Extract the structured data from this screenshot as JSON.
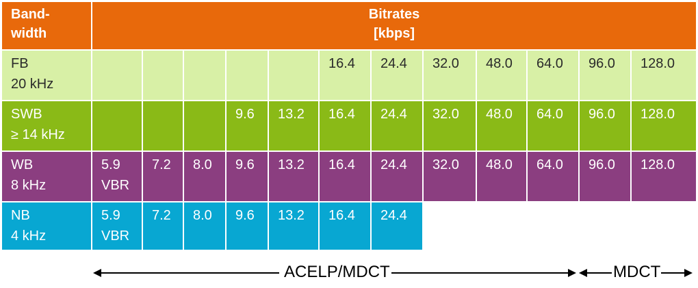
{
  "chart_data": {
    "type": "table",
    "header": {
      "row_label": [
        "Band-",
        "width"
      ],
      "title": [
        "Bitrates",
        "[kbps]"
      ]
    },
    "rows": [
      {
        "name": "FB",
        "label": [
          "FB",
          "20 kHz"
        ],
        "fill": "#d8f0a6",
        "text_color": "#2a2a2a",
        "cells": [
          "",
          "",
          "",
          "",
          "",
          "16.4",
          "24.4",
          "32.0",
          "48.0",
          "64.0",
          "96.0",
          "128.0"
        ]
      },
      {
        "name": "SWB",
        "label": [
          "SWB",
          "≥ 14 kHz"
        ],
        "fill": "#8aba17",
        "text_color": "#ffffff",
        "cells": [
          "",
          "",
          "",
          "9.6",
          "13.2",
          "16.4",
          "24.4",
          "32.0",
          "48.0",
          "64.0",
          "96.0",
          "128.0"
        ]
      },
      {
        "name": "WB",
        "label": [
          "WB",
          "8 kHz"
        ],
        "fill": "#8b3e80",
        "text_color": "#ffffff",
        "cells": [
          "5.9\nVBR",
          "7.2",
          "8.0",
          "9.6",
          "13.2",
          "16.4",
          "24.4",
          "32.0",
          "48.0",
          "64.0",
          "96.0",
          "128.0"
        ]
      },
      {
        "name": "NB",
        "label": [
          "NB",
          "4 kHz"
        ],
        "fill": "#08a7d2",
        "text_color": "#ffffff",
        "cells": [
          "5.9\nVBR",
          "7.2",
          "8.0",
          "9.6",
          "13.2",
          "16.4",
          "24.4",
          null,
          null,
          null,
          null,
          null
        ]
      }
    ],
    "header_fill": "#e8690b",
    "annotations": {
      "acelp_mdct": "ACELP/MDCT",
      "mdct": "MDCT"
    }
  }
}
